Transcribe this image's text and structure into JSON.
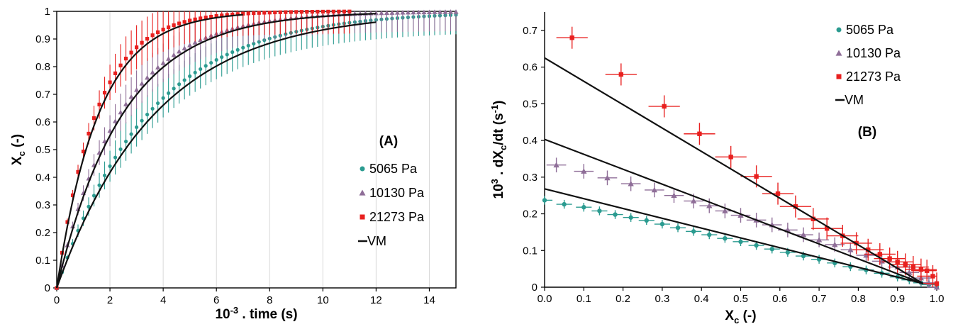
{
  "colors": {
    "s5065": "#2b9b90",
    "s10130": "#8f6e98",
    "s21273": "#e8201f",
    "model": "#111111",
    "grid": "#d9d9d9"
  },
  "chart_data": [
    {
      "type": "scatter",
      "panel_label": "(A)",
      "xlabel": {
        "pre": "10",
        "sup": "-3",
        "post": " . time (s)"
      },
      "ylabel": {
        "main": "X",
        "sub": "c",
        "post": " (-)"
      },
      "xlim": [
        0,
        15
      ],
      "ylim": [
        0,
        1
      ],
      "xticks": [
        "0",
        "2",
        "4",
        "6",
        "8",
        "10",
        "12",
        "14"
      ],
      "yticks": [
        "0",
        "0.1",
        "0.2",
        "0.3",
        "0.4",
        "0.5",
        "0.6",
        "0.7",
        "0.8",
        "0.9",
        "1"
      ],
      "grid": "vertical",
      "legend_position": "right",
      "series": [
        {
          "name": "5065 Pa",
          "marker": "circle",
          "k": 0.29,
          "tmax": 15,
          "dt": 0.2,
          "err_max": 0.07
        },
        {
          "name": "10130 Pa",
          "marker": "triangle",
          "k": 0.42,
          "tmax": 15,
          "dt": 0.2,
          "err_max": 0.07
        },
        {
          "name": "21273 Pa",
          "marker": "square",
          "k": 0.68,
          "tmax": 11,
          "dt": 0.2,
          "err_max": 0.08
        }
      ],
      "model": {
        "name": "VM",
        "curves": [
          {
            "k": 0.27,
            "tmax": 12
          },
          {
            "k": 0.4,
            "tmax": 12
          },
          {
            "k": 0.63,
            "tmax": 7
          }
        ]
      }
    },
    {
      "type": "scatter",
      "panel_label": "(B)",
      "xlabel": {
        "main": "X",
        "sub": "c",
        "post": " (-)"
      },
      "ylabel": {
        "pre": "10",
        "sup": "3",
        "mid": " . dX",
        "sub": "c",
        "post": "/dt (s",
        "sup2": "-1",
        "end": ")"
      },
      "xlim": [
        0,
        1
      ],
      "ylim": [
        0,
        0.75
      ],
      "xticks": [
        "0.0",
        "0.1",
        "0.2",
        "0.3",
        "0.4",
        "0.5",
        "0.6",
        "0.7",
        "0.8",
        "0.9",
        "1.0"
      ],
      "yticks": [
        "0",
        "0.1",
        "0.2",
        "0.3",
        "0.4",
        "0.5",
        "0.6",
        "0.7"
      ],
      "grid": "none",
      "legend_position": "top-right",
      "series": [
        {
          "name": "5065 Pa",
          "marker": "circle",
          "points": [
            [
              0.0,
              0.237
            ],
            [
              0.05,
              0.226
            ],
            [
              0.1,
              0.218
            ],
            [
              0.14,
              0.208
            ],
            [
              0.18,
              0.198
            ],
            [
              0.22,
              0.19
            ],
            [
              0.26,
              0.182
            ],
            [
              0.3,
              0.172
            ],
            [
              0.34,
              0.162
            ],
            [
              0.38,
              0.152
            ],
            [
              0.42,
              0.143
            ],
            [
              0.46,
              0.133
            ],
            [
              0.5,
              0.124
            ],
            [
              0.54,
              0.114
            ],
            [
              0.58,
              0.104
            ],
            [
              0.62,
              0.095
            ],
            [
              0.66,
              0.085
            ],
            [
              0.7,
              0.076
            ],
            [
              0.74,
              0.066
            ],
            [
              0.78,
              0.056
            ],
            [
              0.82,
              0.047
            ],
            [
              0.86,
              0.038
            ],
            [
              0.9,
              0.028
            ],
            [
              0.93,
              0.02
            ],
            [
              0.96,
              0.012
            ],
            [
              0.98,
              0.007
            ],
            [
              1.0,
              0.0
            ]
          ],
          "xerr": 0.02,
          "yerr": 0.012
        },
        {
          "name": "10130 Pa",
          "marker": "triangle",
          "points": [
            [
              0.03,
              0.333
            ],
            [
              0.1,
              0.316
            ],
            [
              0.16,
              0.298
            ],
            [
              0.22,
              0.282
            ],
            [
              0.28,
              0.265
            ],
            [
              0.33,
              0.25
            ],
            [
              0.38,
              0.235
            ],
            [
              0.42,
              0.222
            ],
            [
              0.46,
              0.208
            ],
            [
              0.5,
              0.196
            ],
            [
              0.54,
              0.183
            ],
            [
              0.58,
              0.17
            ],
            [
              0.62,
              0.156
            ],
            [
              0.66,
              0.143
            ],
            [
              0.7,
              0.129
            ],
            [
              0.74,
              0.116
            ],
            [
              0.78,
              0.102
            ],
            [
              0.82,
              0.087
            ],
            [
              0.86,
              0.071
            ],
            [
              0.9,
              0.055
            ],
            [
              0.93,
              0.04
            ],
            [
              0.96,
              0.025
            ],
            [
              0.98,
              0.012
            ],
            [
              1.0,
              0.0
            ]
          ],
          "xerr": 0.025,
          "yerr": 0.02
        },
        {
          "name": "21273 Pa",
          "marker": "square",
          "points": [
            [
              0.07,
              0.68
            ],
            [
              0.195,
              0.58
            ],
            [
              0.305,
              0.493
            ],
            [
              0.395,
              0.418
            ],
            [
              0.475,
              0.355
            ],
            [
              0.54,
              0.302
            ],
            [
              0.595,
              0.255
            ],
            [
              0.64,
              0.22
            ],
            [
              0.685,
              0.186
            ],
            [
              0.72,
              0.16
            ],
            [
              0.76,
              0.14
            ],
            [
              0.795,
              0.12
            ],
            [
              0.825,
              0.102
            ],
            [
              0.855,
              0.09
            ],
            [
              0.88,
              0.078
            ],
            [
              0.9,
              0.069
            ],
            [
              0.92,
              0.062
            ],
            [
              0.94,
              0.055
            ],
            [
              0.96,
              0.048
            ],
            [
              0.975,
              0.045
            ],
            [
              0.99,
              0.03
            ],
            [
              1.0,
              0.01
            ]
          ],
          "xerr": 0.04,
          "yerr": 0.03
        }
      ],
      "model": {
        "name": "VM",
        "lines": [
          {
            "x0": 0.0,
            "y0": 0.625,
            "x1": 0.965,
            "y1": 0.01
          },
          {
            "x0": 0.0,
            "y0": 0.403,
            "x1": 0.965,
            "y1": 0.01
          },
          {
            "x0": 0.0,
            "y0": 0.268,
            "x1": 0.965,
            "y1": 0.01
          }
        ]
      }
    }
  ]
}
